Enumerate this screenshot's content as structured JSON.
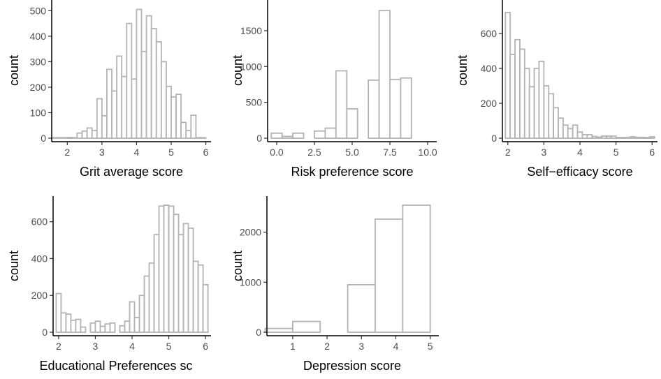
{
  "figure": {
    "bar_outline_color": "#b3b3b3",
    "bar_fill_color": "#ffffff",
    "background": "#ffffff"
  },
  "chart_data": [
    {
      "type": "histogram",
      "id": "grit",
      "title": "",
      "xlabel": "Grit average score",
      "ylabel": "count",
      "xlim": [
        1.55,
        6.15
      ],
      "ylim": [
        0,
        520
      ],
      "xticks": [
        2,
        3,
        4,
        5,
        6
      ],
      "xtick_labels": [
        "2",
        "3",
        "4",
        "5",
        "6"
      ],
      "yticks": [
        0,
        100,
        200,
        300,
        400,
        500
      ],
      "ytick_labels": [
        "0",
        "100",
        "200",
        "300",
        "400",
        "500"
      ],
      "bin_width": 0.1429,
      "bin_centers": [
        1.643,
        1.786,
        1.929,
        2.071,
        2.214,
        2.357,
        2.5,
        2.643,
        2.786,
        2.929,
        3.071,
        3.214,
        3.357,
        3.5,
        3.643,
        3.786,
        3.929,
        4.071,
        4.214,
        4.357,
        4.5,
        4.643,
        4.786,
        4.929,
        5.071,
        5.214,
        5.357,
        5.5,
        5.643,
        5.786,
        5.929
      ],
      "counts": [
        2,
        2,
        2,
        3,
        2,
        20,
        28,
        40,
        30,
        155,
        88,
        270,
        185,
        322,
        242,
        450,
        232,
        505,
        340,
        480,
        430,
        378,
        300,
        203,
        162,
        172,
        62,
        30,
        90,
        2,
        2
      ]
    },
    {
      "type": "histogram",
      "id": "risk",
      "title": "",
      "xlabel": "Risk preference score",
      "ylabel": "count",
      "xlim": [
        -0.6,
        10.6
      ],
      "ylim": [
        0,
        1850
      ],
      "xticks": [
        0,
        2.5,
        5,
        7.5,
        10
      ],
      "xtick_labels": [
        "0.0",
        "2.5",
        "5.0",
        "7.5",
        "10.0"
      ],
      "yticks": [
        0,
        500,
        1000,
        1500
      ],
      "ytick_labels": [
        "0",
        "500",
        "1000",
        "1500"
      ],
      "bin_width": 0.7143,
      "bin_centers": [
        0.0,
        0.714,
        1.429,
        2.143,
        2.857,
        3.571,
        4.286,
        5.0,
        5.714,
        6.429,
        7.143,
        7.857,
        8.571,
        9.286,
        10.0
      ],
      "counts": [
        70,
        25,
        70,
        0,
        100,
        140,
        940,
        410,
        0,
        810,
        1780,
        820,
        840,
        0,
        0
      ]
    },
    {
      "type": "histogram",
      "id": "selfefficacy",
      "title": "",
      "xlabel": "Self−efficacy score",
      "ylabel": "count",
      "xlim": [
        1.85,
        6.15
      ],
      "ylim": [
        0,
        760
      ],
      "xticks": [
        2,
        3,
        4,
        5,
        6
      ],
      "xtick_labels": [
        "2",
        "3",
        "4",
        "5",
        "6"
      ],
      "yticks": [
        0,
        200,
        400,
        600
      ],
      "ytick_labels": [
        "0",
        "200",
        "400",
        "600"
      ],
      "bin_width": 0.1333,
      "bin_centers": [
        2.0,
        2.133,
        2.267,
        2.4,
        2.533,
        2.667,
        2.8,
        2.933,
        3.067,
        3.2,
        3.333,
        3.467,
        3.6,
        3.733,
        3.867,
        4.0,
        4.133,
        4.267,
        4.4,
        4.533,
        4.667,
        4.8,
        4.933,
        5.067,
        5.2,
        5.333,
        5.467,
        5.6,
        5.733,
        5.867,
        6.0
      ],
      "counts": [
        720,
        480,
        565,
        510,
        400,
        295,
        400,
        440,
        300,
        255,
        175,
        115,
        75,
        55,
        75,
        35,
        20,
        20,
        10,
        6,
        12,
        12,
        12,
        4,
        4,
        4,
        8,
        5,
        5,
        4,
        8
      ]
    },
    {
      "type": "histogram",
      "id": "educational",
      "title": "",
      "xlabel": "Educational Preferences sc",
      "ylabel": "count",
      "xlim": [
        1.85,
        6.15
      ],
      "ylim": [
        0,
        720
      ],
      "xticks": [
        2,
        3,
        4,
        5,
        6
      ],
      "xtick_labels": [
        "2",
        "3",
        "4",
        "5",
        "6"
      ],
      "yticks": [
        0,
        200,
        400,
        600
      ],
      "ytick_labels": [
        "0",
        "200",
        "400",
        "600"
      ],
      "bin_width": 0.1333,
      "bin_centers": [
        2.0,
        2.133,
        2.267,
        2.4,
        2.533,
        2.667,
        2.8,
        2.933,
        3.067,
        3.2,
        3.333,
        3.467,
        3.6,
        3.733,
        3.867,
        4.0,
        4.133,
        4.267,
        4.4,
        4.533,
        4.667,
        4.8,
        4.933,
        5.067,
        5.2,
        5.333,
        5.467,
        5.6,
        5.733,
        5.867,
        6.0
      ],
      "counts": [
        210,
        105,
        98,
        65,
        70,
        28,
        0,
        50,
        60,
        32,
        45,
        50,
        0,
        35,
        60,
        165,
        80,
        200,
        305,
        375,
        530,
        685,
        690,
        685,
        640,
        530,
        590,
        565,
        385,
        365,
        258
      ]
    },
    {
      "type": "histogram",
      "id": "depression",
      "title": "",
      "xlabel": "Depression score",
      "ylabel": "count",
      "xlim": [
        0.25,
        5.25
      ],
      "ylim": [
        0,
        2650
      ],
      "xticks": [
        1,
        2,
        3,
        4,
        5
      ],
      "xtick_labels": [
        "1",
        "2",
        "3",
        "4",
        "5"
      ],
      "yticks": [
        0,
        1000,
        2000
      ],
      "ytick_labels": [
        "0",
        "1000",
        "2000"
      ],
      "bin_width": 0.8,
      "bin_centers": [
        0.6,
        1.4,
        2.2,
        3.0,
        3.8,
        4.6
      ],
      "counts": [
        75,
        215,
        0,
        950,
        2260,
        2540
      ]
    }
  ]
}
